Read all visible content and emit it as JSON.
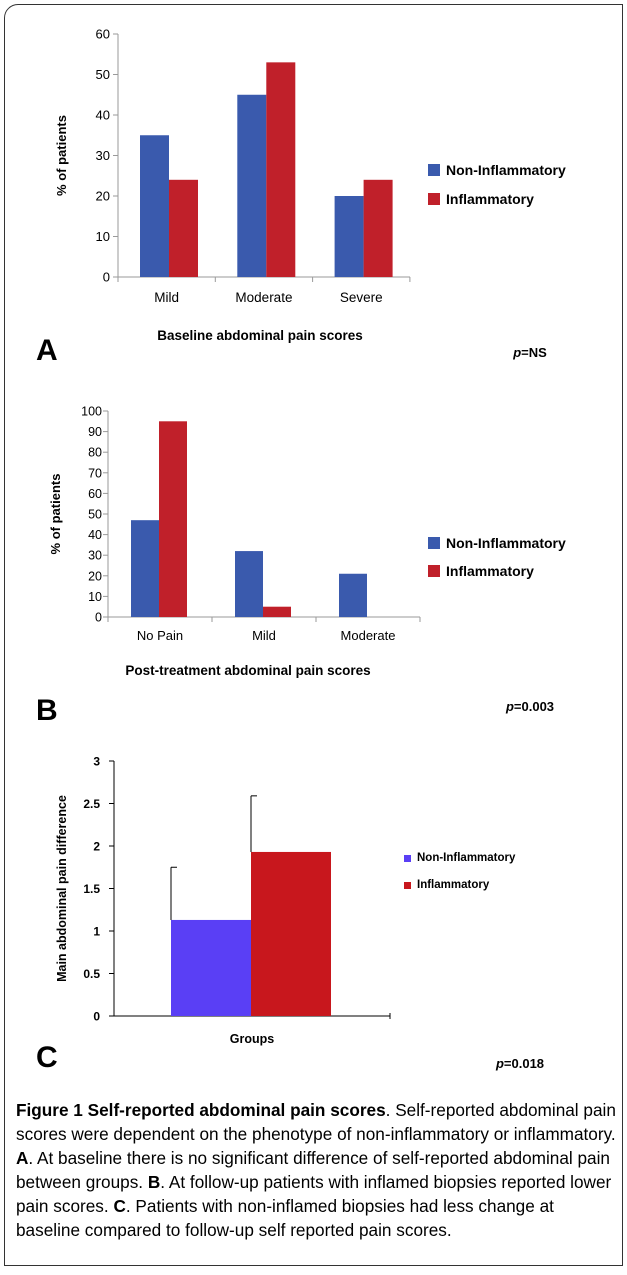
{
  "chart_data": [
    {
      "type": "bar",
      "panel_label": "A",
      "categories": [
        "Mild",
        "Moderate",
        "Severe"
      ],
      "series": [
        {
          "name": "Non-Inflammatory",
          "values": [
            35,
            45,
            20
          ],
          "color": "#3a5aad"
        },
        {
          "name": "Inflammatory",
          "values": [
            24,
            53,
            24
          ],
          "color": "#c0202a"
        }
      ],
      "ylim": [
        0,
        60
      ],
      "yticks": [
        "0",
        "10",
        "20",
        "30",
        "40",
        "50",
        "60"
      ],
      "ytick_values": [
        0,
        10,
        20,
        30,
        40,
        50,
        60
      ],
      "ylabel": "% of patients",
      "xlabel": "Baseline abdominal pain scores",
      "pvalue": "p=NS",
      "legend": "right"
    },
    {
      "type": "bar",
      "panel_label": "B",
      "categories": [
        "No Pain",
        "Mild",
        "Moderate"
      ],
      "series": [
        {
          "name": "Non-Inflammatory",
          "values": [
            47,
            32,
            21
          ],
          "color": "#3a5aad"
        },
        {
          "name": "Inflammatory",
          "values": [
            95,
            5,
            0
          ],
          "color": "#c0202a"
        }
      ],
      "ylim": [
        0,
        100
      ],
      "yticks": [
        "0",
        "10",
        "20",
        "30",
        "40",
        "50",
        "60",
        "70",
        "80",
        "90",
        "100"
      ],
      "ytick_values": [
        0,
        10,
        20,
        30,
        40,
        50,
        60,
        70,
        80,
        90,
        100
      ],
      "ylabel": "% of patients",
      "xlabel": "Post-treatment abdominal pain scores",
      "pvalue": "p=0.003",
      "legend": "right"
    },
    {
      "type": "bar",
      "panel_label": "C",
      "categories": [
        "Groups"
      ],
      "series": [
        {
          "name": "Non-Inflammatory",
          "values": [
            1.13
          ],
          "error": [
            0.62
          ],
          "color": "#5a3ff5"
        },
        {
          "name": "Inflammatory",
          "values": [
            1.93
          ],
          "error": [
            0.66
          ],
          "color": "#c8171d"
        }
      ],
      "ylim": [
        0,
        3
      ],
      "yticks": [
        "0",
        "0.5",
        "1",
        "1.5",
        "2",
        "2.5",
        "3"
      ],
      "ytick_values": [
        0,
        0.5,
        1,
        1.5,
        2,
        2.5,
        3
      ],
      "ylabel": "Main abdominal pain difference",
      "xlabel": "Groups",
      "pvalue": "p=0.018",
      "legend": "right"
    }
  ],
  "caption": {
    "figure_label": "Figure 1",
    "title": "Self-reported abdominal pain scores",
    "body": ". Self-reported abdominal pain scores were dependent on the phenotype of non-inflammatory or inflammatory. ",
    "a_label": "A",
    "a_text": ". At baseline there is no significant difference of self-reported abdominal pain between groups. ",
    "b_label": "B",
    "b_text": ". At follow-up patients with inflamed biopsies reported lower pain scores. ",
    "c_label": "C",
    "c_text": ". Patients with non-inflamed biopsies had less change at baseline compared to follow-up self reported pain scores."
  }
}
